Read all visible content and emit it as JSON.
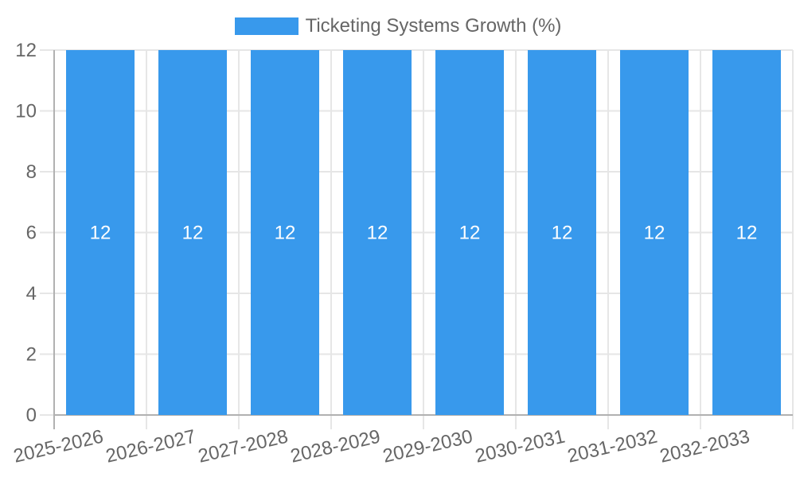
{
  "chart_data": {
    "type": "bar",
    "title": "",
    "legend": {
      "position": "top"
    },
    "categories": [
      "2025-2026",
      "2026-2027",
      "2027-2028",
      "2028-2029",
      "2029-2030",
      "2030-2031",
      "2031-2032",
      "2032-2033"
    ],
    "series": [
      {
        "name": "Ticketing Systems Growth (%)",
        "values": [
          12,
          12,
          12,
          12,
          12,
          12,
          12,
          12
        ]
      }
    ],
    "bar_value_labels": [
      "12",
      "12",
      "12",
      "12",
      "12",
      "12",
      "12",
      "12"
    ],
    "xlabel": "",
    "ylabel": "",
    "ylim": [
      0,
      12
    ],
    "yticks": [
      0,
      2,
      4,
      6,
      8,
      10,
      12
    ],
    "grid": true,
    "colors": {
      "bar": "#3899ec",
      "grid": "#e6e6e6",
      "axis_border": "#b1b1b1",
      "tick_text": "#666666",
      "legend_text": "#666666",
      "bar_label_text": "#ffffff",
      "background": "#ffffff"
    }
  }
}
